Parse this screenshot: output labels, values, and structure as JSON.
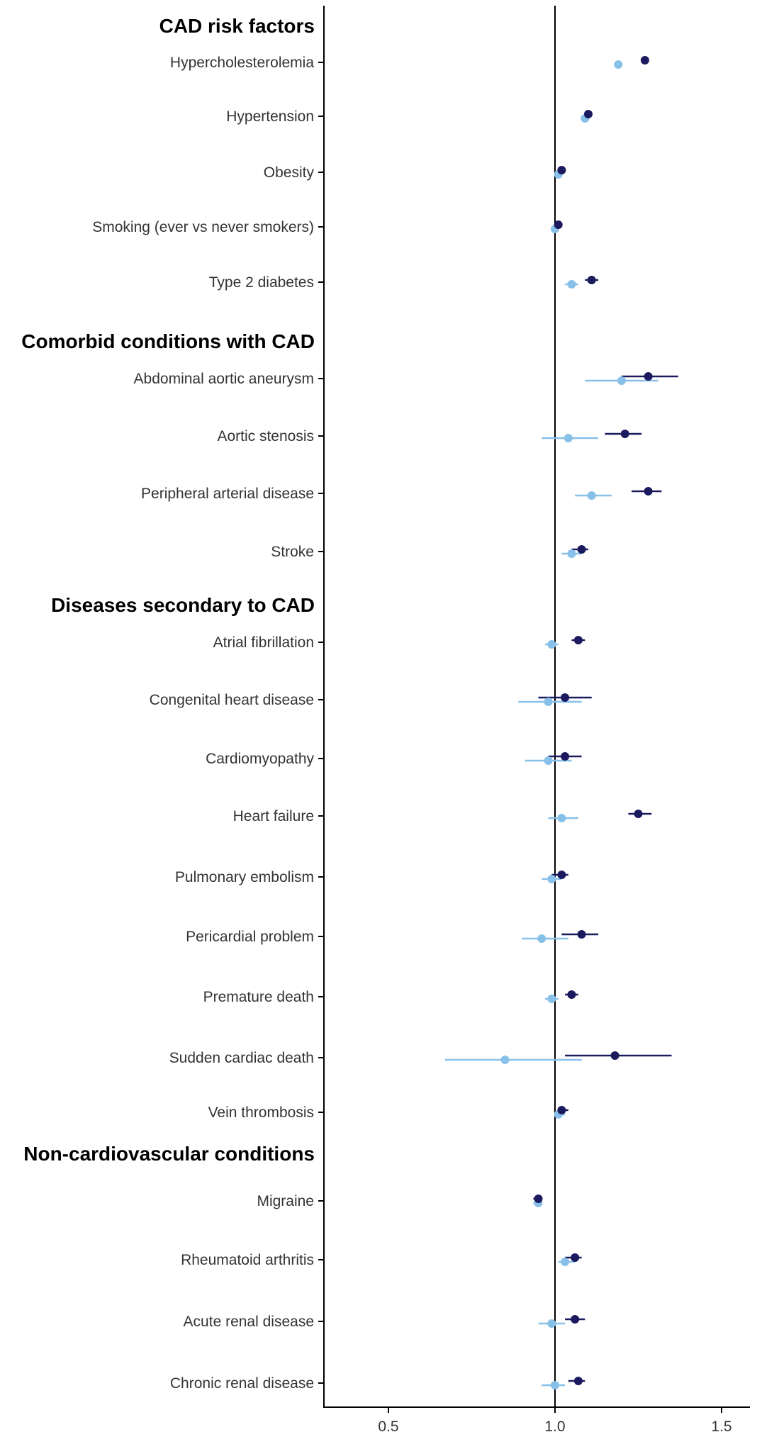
{
  "chart_data": {
    "type": "scatter",
    "x": [
      0.5,
      1.0,
      1.5
    ],
    "xlim": [
      0.3,
      1.58
    ],
    "reference_x": 1.0,
    "grid": false,
    "colors": {
      "series_a": "#1b1a5e",
      "series_b": "#87c0e8"
    },
    "groups": [
      {
        "heading": "CAD risk factors",
        "rows": [
          {
            "label": "Hypercholesterolemia",
            "a": {
              "est": 1.27,
              "lo": 1.262,
              "hi": 1.278
            },
            "b": {
              "est": 1.19,
              "lo": 1.182,
              "hi": 1.198
            }
          },
          {
            "label": "Hypertension",
            "a": {
              "est": 1.1,
              "lo": 1.094,
              "hi": 1.106
            },
            "b": {
              "est": 1.09,
              "lo": 1.084,
              "hi": 1.096
            }
          },
          {
            "label": "Obesity",
            "a": {
              "est": 1.02,
              "lo": 1.014,
              "hi": 1.026
            },
            "b": {
              "est": 1.01,
              "lo": 1.004,
              "hi": 1.016
            }
          },
          {
            "label": "Smoking (ever vs never smokers)",
            "a": {
              "est": 1.01,
              "lo": 1.005,
              "hi": 1.015
            },
            "b": {
              "est": 1.0,
              "lo": 0.995,
              "hi": 1.005
            }
          },
          {
            "label": "Type 2 diabetes",
            "a": {
              "est": 1.11,
              "lo": 1.09,
              "hi": 1.13
            },
            "b": {
              "est": 1.05,
              "lo": 1.03,
              "hi": 1.07
            }
          }
        ]
      },
      {
        "heading": "Comorbid conditions with CAD",
        "rows": [
          {
            "label": "Abdominal aortic aneurysm",
            "a": {
              "est": 1.28,
              "lo": 1.2,
              "hi": 1.37
            },
            "b": {
              "est": 1.2,
              "lo": 1.09,
              "hi": 1.31
            }
          },
          {
            "label": "Aortic stenosis",
            "a": {
              "est": 1.21,
              "lo": 1.15,
              "hi": 1.26
            },
            "b": {
              "est": 1.04,
              "lo": 0.96,
              "hi": 1.13
            }
          },
          {
            "label": "Peripheral arterial disease",
            "a": {
              "est": 1.28,
              "lo": 1.23,
              "hi": 1.32
            },
            "b": {
              "est": 1.11,
              "lo": 1.06,
              "hi": 1.17
            }
          },
          {
            "label": "Stroke",
            "a": {
              "est": 1.08,
              "lo": 1.05,
              "hi": 1.1
            },
            "b": {
              "est": 1.05,
              "lo": 1.02,
              "hi": 1.08
            }
          }
        ]
      },
      {
        "heading": "Diseases secondary to CAD",
        "rows": [
          {
            "label": "Atrial fibrillation",
            "a": {
              "est": 1.07,
              "lo": 1.05,
              "hi": 1.09
            },
            "b": {
              "est": 0.99,
              "lo": 0.97,
              "hi": 1.01
            }
          },
          {
            "label": "Congenital heart disease",
            "a": {
              "est": 1.03,
              "lo": 0.95,
              "hi": 1.11
            },
            "b": {
              "est": 0.98,
              "lo": 0.89,
              "hi": 1.08
            }
          },
          {
            "label": "Cardiomyopathy",
            "a": {
              "est": 1.03,
              "lo": 0.98,
              "hi": 1.08
            },
            "b": {
              "est": 0.98,
              "lo": 0.91,
              "hi": 1.05
            }
          },
          {
            "label": "Heart failure",
            "a": {
              "est": 1.25,
              "lo": 1.22,
              "hi": 1.29
            },
            "b": {
              "est": 1.02,
              "lo": 0.98,
              "hi": 1.07
            }
          },
          {
            "label": "Pulmonary embolism",
            "a": {
              "est": 1.02,
              "lo": 0.99,
              "hi": 1.04
            },
            "b": {
              "est": 0.99,
              "lo": 0.96,
              "hi": 1.02
            }
          },
          {
            "label": "Pericardial problem",
            "a": {
              "est": 1.08,
              "lo": 1.02,
              "hi": 1.13
            },
            "b": {
              "est": 0.96,
              "lo": 0.9,
              "hi": 1.04
            }
          },
          {
            "label": "Premature death",
            "a": {
              "est": 1.05,
              "lo": 1.03,
              "hi": 1.07
            },
            "b": {
              "est": 0.99,
              "lo": 0.97,
              "hi": 1.01
            }
          },
          {
            "label": "Sudden cardiac death",
            "a": {
              "est": 1.18,
              "lo": 1.03,
              "hi": 1.35
            },
            "b": {
              "est": 0.85,
              "lo": 0.67,
              "hi": 1.08
            }
          },
          {
            "label": "Vein thrombosis",
            "a": {
              "est": 1.02,
              "lo": 1.01,
              "hi": 1.04
            },
            "b": {
              "est": 1.01,
              "lo": 1.0,
              "hi": 1.03
            }
          }
        ]
      },
      {
        "heading": "Non-cardiovascular conditions",
        "rows": [
          {
            "label": "Migraine",
            "a": {
              "est": 0.95,
              "lo": 0.935,
              "hi": 0.96
            },
            "b": {
              "est": 0.95,
              "lo": 0.935,
              "hi": 0.96
            }
          },
          {
            "label": "Rheumatoid arthritis",
            "a": {
              "est": 1.06,
              "lo": 1.03,
              "hi": 1.08
            },
            "b": {
              "est": 1.03,
              "lo": 1.01,
              "hi": 1.06
            }
          },
          {
            "label": "Acute renal disease",
            "a": {
              "est": 1.06,
              "lo": 1.03,
              "hi": 1.09
            },
            "b": {
              "est": 0.99,
              "lo": 0.95,
              "hi": 1.03
            }
          },
          {
            "label": "Chronic renal disease",
            "a": {
              "est": 1.07,
              "lo": 1.04,
              "hi": 1.09
            },
            "b": {
              "est": 1.0,
              "lo": 0.96,
              "hi": 1.03
            }
          }
        ]
      }
    ]
  }
}
